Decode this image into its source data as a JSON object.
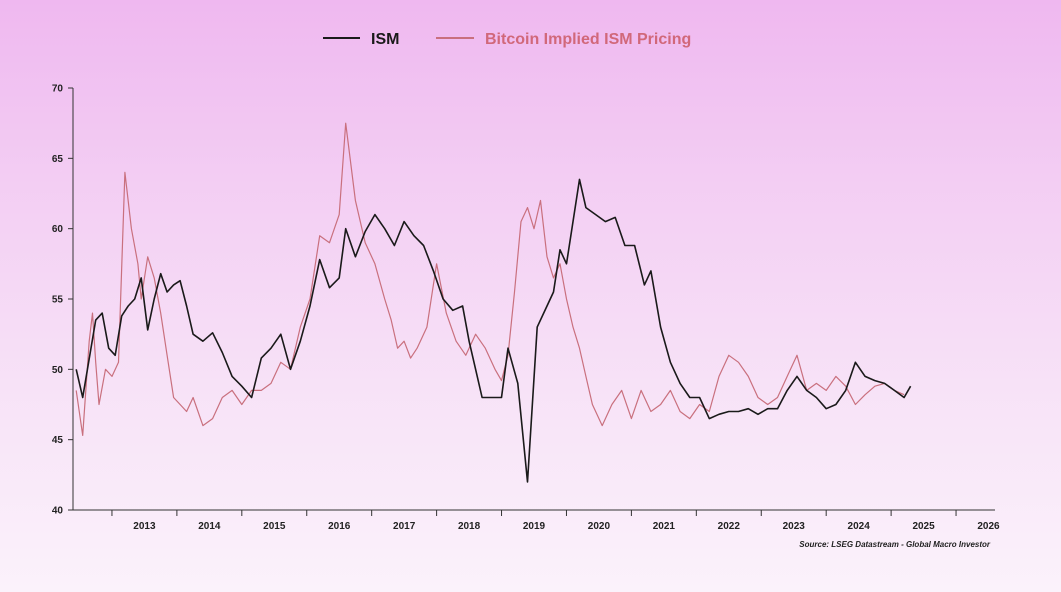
{
  "chart_data": {
    "type": "line",
    "title": "",
    "xlabel": "",
    "ylabel": "",
    "ylim": [
      40,
      70
    ],
    "xlim": [
      2012.4,
      2026.6
    ],
    "yticks": [
      "40",
      "45",
      "50",
      "55",
      "60",
      "65",
      "70"
    ],
    "xticks": [
      "2013",
      "2014",
      "2015",
      "2016",
      "2017",
      "2018",
      "2019",
      "2020",
      "2021",
      "2022",
      "2023",
      "2024",
      "2025",
      "2026"
    ],
    "legend_position": "top-center",
    "source": "Source: LSEG Datastream - Global Macro Investor",
    "series": [
      {
        "name": "ISM",
        "color": "#1a1a1a",
        "x": [
          2012.45,
          2012.55,
          2012.75,
          2012.85,
          2012.95,
          2013.05,
          2013.15,
          2013.25,
          2013.35,
          2013.45,
          2013.55,
          2013.65,
          2013.75,
          2013.85,
          2013.95,
          2014.05,
          2014.15,
          2014.25,
          2014.4,
          2014.55,
          2014.7,
          2014.85,
          2015.0,
          2015.15,
          2015.3,
          2015.45,
          2015.6,
          2015.75,
          2015.9,
          2016.05,
          2016.2,
          2016.35,
          2016.5,
          2016.6,
          2016.75,
          2016.9,
          2017.05,
          2017.2,
          2017.35,
          2017.5,
          2017.65,
          2017.8,
          2017.95,
          2018.1,
          2018.25,
          2018.4,
          2018.5,
          2018.6,
          2018.7,
          2018.85,
          2019.0,
          2019.1,
          2019.25,
          2019.4,
          2019.55,
          2019.7,
          2019.8,
          2019.9,
          2020.0,
          2020.1,
          2020.2,
          2020.3,
          2020.45,
          2020.6,
          2020.75,
          2020.9,
          2021.05,
          2021.2,
          2021.3,
          2021.45,
          2021.6,
          2021.75,
          2021.9,
          2022.05,
          2022.2,
          2022.35,
          2022.5,
          2022.65,
          2022.8,
          2022.95,
          2023.1,
          2023.25,
          2023.4,
          2023.55,
          2023.7,
          2023.85,
          2024.0,
          2024.15,
          2024.3,
          2024.45,
          2024.6,
          2024.75,
          2024.9,
          2025.05,
          2025.2,
          2025.3
        ],
        "values": [
          50.0,
          48.0,
          53.5,
          54.0,
          51.5,
          51.0,
          53.8,
          54.5,
          55.0,
          56.5,
          52.8,
          55.0,
          56.8,
          55.5,
          56.0,
          56.3,
          54.5,
          52.5,
          52.0,
          52.6,
          51.2,
          49.5,
          48.8,
          48.0,
          50.8,
          51.5,
          52.5,
          50.0,
          52.0,
          54.5,
          57.8,
          55.8,
          56.5,
          60.0,
          58.0,
          59.8,
          61.0,
          60.0,
          58.8,
          60.5,
          59.5,
          58.8,
          57.0,
          55.0,
          54.2,
          54.5,
          52.0,
          50.0,
          48.0,
          48.0,
          48.0,
          51.5,
          49.0,
          42.0,
          53.0,
          54.5,
          55.5,
          58.5,
          57.5,
          60.5,
          63.5,
          61.5,
          61.0,
          60.5,
          60.8,
          58.8,
          58.8,
          56.0,
          57.0,
          53.0,
          50.5,
          49.0,
          48.0,
          48.0,
          46.5,
          46.8,
          47.0,
          47.0,
          47.2,
          46.8,
          47.2,
          47.2,
          48.5,
          49.5,
          48.5,
          48.0,
          47.2,
          47.5,
          48.5,
          50.5,
          49.5,
          49.2,
          49.0,
          48.5,
          48.0,
          48.8
        ]
      },
      {
        "name": "Bitcoin Implied ISM Pricing",
        "color": "#c9707e",
        "x": [
          2012.45,
          2012.55,
          2012.65,
          2012.7,
          2012.75,
          2012.8,
          2012.9,
          2013.0,
          2013.1,
          2013.2,
          2013.3,
          2013.4,
          2013.45,
          2013.55,
          2013.65,
          2013.75,
          2013.85,
          2013.95,
          2014.05,
          2014.15,
          2014.25,
          2014.4,
          2014.55,
          2014.7,
          2014.85,
          2015.0,
          2015.15,
          2015.3,
          2015.45,
          2015.6,
          2015.75,
          2015.9,
          2016.05,
          2016.2,
          2016.35,
          2016.5,
          2016.6,
          2016.75,
          2016.9,
          2017.05,
          2017.2,
          2017.3,
          2017.4,
          2017.5,
          2017.6,
          2017.7,
          2017.85,
          2018.0,
          2018.15,
          2018.3,
          2018.45,
          2018.6,
          2018.75,
          2018.9,
          2019.0,
          2019.1,
          2019.2,
          2019.3,
          2019.4,
          2019.5,
          2019.6,
          2019.7,
          2019.8,
          2019.9,
          2020.0,
          2020.1,
          2020.2,
          2020.3,
          2020.4,
          2020.55,
          2020.7,
          2020.85,
          2021.0,
          2021.15,
          2021.3,
          2021.45,
          2021.6,
          2021.75,
          2021.9,
          2022.05,
          2022.2,
          2022.35,
          2022.5,
          2022.65,
          2022.8,
          2022.95,
          2023.1,
          2023.25,
          2023.4,
          2023.55,
          2023.7,
          2023.85,
          2024.0,
          2024.15,
          2024.3,
          2024.45,
          2024.6,
          2024.75,
          2024.9,
          2025.05,
          2025.2
        ],
        "values": [
          48.5,
          45.3,
          52.0,
          54.0,
          50.5,
          47.5,
          50.0,
          49.5,
          50.5,
          64.0,
          60.0,
          57.5,
          55.0,
          58.0,
          56.5,
          54.0,
          51.0,
          48.0,
          47.5,
          47.0,
          48.0,
          46.0,
          46.5,
          48.0,
          48.5,
          47.5,
          48.5,
          48.5,
          49.0,
          50.5,
          50.0,
          53.0,
          55.0,
          59.5,
          59.0,
          61.0,
          67.5,
          62.0,
          59.0,
          57.5,
          55.0,
          53.5,
          51.5,
          52.0,
          50.8,
          51.5,
          53.0,
          57.5,
          54.0,
          52.0,
          51.0,
          52.5,
          51.5,
          50.0,
          49.2,
          51.0,
          55.5,
          60.5,
          61.5,
          60.0,
          62.0,
          58.0,
          56.5,
          57.5,
          55.0,
          53.0,
          51.5,
          49.5,
          47.5,
          46.0,
          47.5,
          48.5,
          46.5,
          48.5,
          47.0,
          47.5,
          48.5,
          47.0,
          46.5,
          47.5,
          47.0,
          49.5,
          51.0,
          50.5,
          49.5,
          48.0,
          47.5,
          48.0,
          49.5,
          51.0,
          48.5,
          49.0,
          48.5,
          49.5,
          48.8,
          47.5,
          48.2,
          48.8,
          49.0,
          48.5,
          48.2
        ]
      }
    ]
  }
}
